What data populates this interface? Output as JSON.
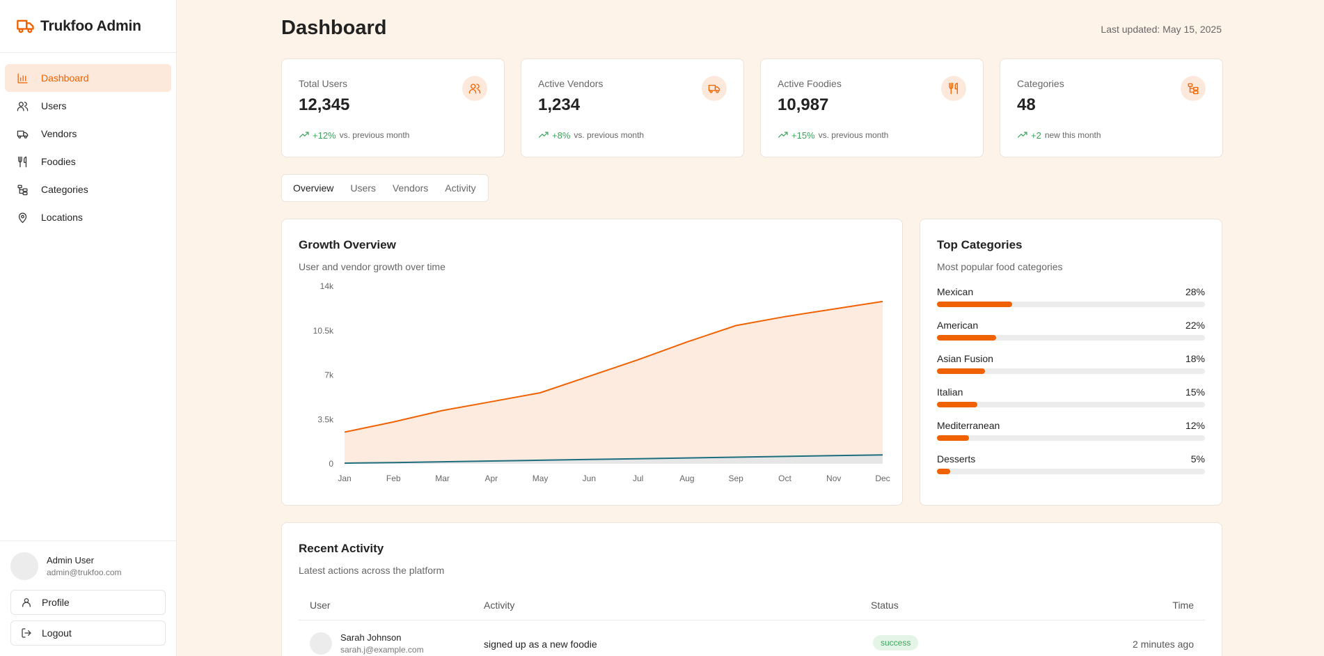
{
  "app": {
    "name": "Trukfoo Admin"
  },
  "nav": {
    "items": [
      {
        "label": "Dashboard",
        "icon": "bar-chart-icon"
      },
      {
        "label": "Users",
        "icon": "users-icon"
      },
      {
        "label": "Vendors",
        "icon": "truck-icon"
      },
      {
        "label": "Foodies",
        "icon": "utensils-icon"
      },
      {
        "label": "Categories",
        "icon": "folder-tree-icon"
      },
      {
        "label": "Locations",
        "icon": "map-pin-icon"
      }
    ],
    "active": "Dashboard"
  },
  "user": {
    "name": "Admin User",
    "email": "admin@trukfoo.com"
  },
  "footer": {
    "profile_label": "Profile",
    "logout_label": "Logout"
  },
  "header": {
    "title": "Dashboard",
    "last_updated": "Last updated: May 15, 2025"
  },
  "stats": [
    {
      "label": "Total Users",
      "value": "12,345",
      "trend": "+12%",
      "note": "vs. previous month",
      "icon": "users-icon"
    },
    {
      "label": "Active Vendors",
      "value": "1,234",
      "trend": "+8%",
      "note": "vs. previous month",
      "icon": "truck-icon"
    },
    {
      "label": "Active Foodies",
      "value": "10,987",
      "trend": "+15%",
      "note": "vs. previous month",
      "icon": "utensils-icon"
    },
    {
      "label": "Categories",
      "value": "48",
      "trend": "+2",
      "note": "new this month",
      "icon": "folder-tree-icon"
    }
  ],
  "tabs": [
    "Overview",
    "Users",
    "Vendors",
    "Activity"
  ],
  "active_tab": "Overview",
  "growth": {
    "title": "Growth Overview",
    "subtitle": "User and vendor growth over time"
  },
  "chart_data": {
    "type": "area",
    "categories": [
      "Jan",
      "Feb",
      "Mar",
      "Apr",
      "May",
      "Jun",
      "Jul",
      "Aug",
      "Sep",
      "Oct",
      "Nov",
      "Dec"
    ],
    "series": [
      {
        "values": [
          2500,
          3300,
          4200,
          4900,
          5600,
          6900,
          8200,
          9600,
          10900,
          11600,
          12200,
          12800
        ],
        "color": "#f06200",
        "fill": "#fdebe0"
      },
      {
        "values": [
          50,
          100,
          160,
          220,
          280,
          340,
          400,
          460,
          520,
          580,
          640,
          700
        ],
        "color": "#1c6d7e",
        "fill": "#e6e6e6"
      }
    ],
    "yticks": [
      "0",
      "3.5k",
      "7k",
      "10.5k",
      "14k"
    ],
    "ylim": [
      0,
      14000
    ],
    "grid": false
  },
  "top_categories": {
    "title": "Top Categories",
    "subtitle": "Most popular food categories",
    "items": [
      {
        "name": "Mexican",
        "pct": "28%",
        "value": 28
      },
      {
        "name": "American",
        "pct": "22%",
        "value": 22
      },
      {
        "name": "Asian Fusion",
        "pct": "18%",
        "value": 18
      },
      {
        "name": "Italian",
        "pct": "15%",
        "value": 15
      },
      {
        "name": "Mediterranean",
        "pct": "12%",
        "value": 12
      },
      {
        "name": "Desserts",
        "pct": "5%",
        "value": 5
      }
    ]
  },
  "recent_activity": {
    "title": "Recent Activity",
    "subtitle": "Latest actions across the platform",
    "columns": [
      "User",
      "Activity",
      "Status",
      "Time"
    ],
    "rows": [
      {
        "name": "Sarah Johnson",
        "email": "sarah.j@example.com",
        "activity": "signed up as a new foodie",
        "status": "success",
        "time": "2 minutes ago"
      }
    ]
  },
  "colors": {
    "accent": "#f06200",
    "success": "#3aa35b",
    "vendor_series": "#1c6d7e",
    "background": "#fdf3e8"
  }
}
